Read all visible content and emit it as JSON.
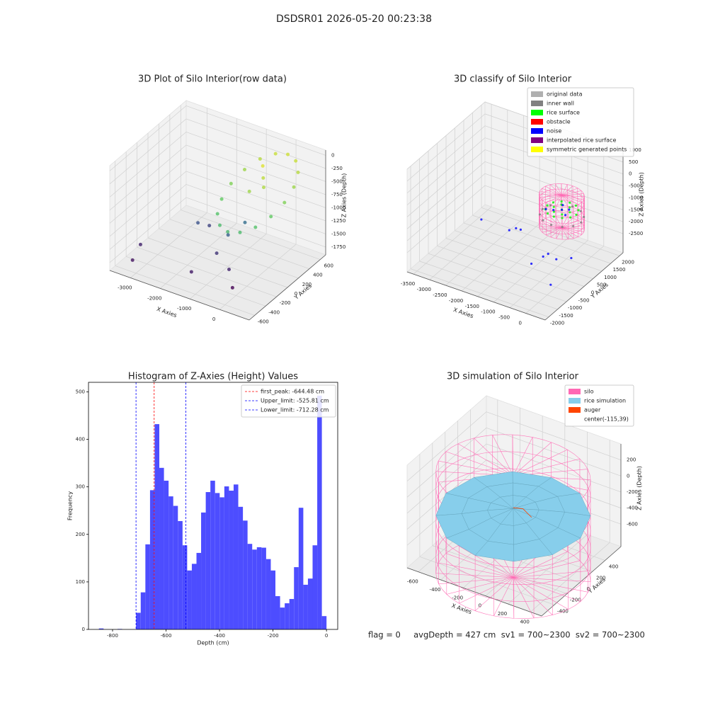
{
  "title": "DSDSR01 2026-05-20 00:23:38",
  "footer": "flag = 0     avgDepth = 427 cm  sv1 = 700~2300  sv2 = 700~2300",
  "chart_data": [
    {
      "type": "scatter3d",
      "title": "3D Plot of Silo Interior(row data)",
      "xlabel": "X Axies",
      "ylabel": "Y Axies",
      "zlabel": "Z Axies (Depth)",
      "xlim": [
        -3700,
        1000
      ],
      "ylim": [
        -700,
        700
      ],
      "zlim": [
        -1900,
        100
      ],
      "xticks": [
        -3000,
        -2000,
        -1000,
        0
      ],
      "yticks": [
        -600,
        -400,
        -200,
        0,
        200,
        400,
        600
      ],
      "zticks": [
        -1750,
        -1500,
        -1250,
        -1000,
        -750,
        -500,
        -250,
        0
      ],
      "colormap": "viridis",
      "x": [
        900,
        830,
        640,
        340,
        0,
        -340,
        -640,
        -830,
        -900,
        -830,
        -640,
        -340,
        0,
        340,
        640,
        830,
        0,
        -200,
        200,
        -100,
        -3300,
        -3400,
        -2000,
        -2200,
        -1200,
        -1000,
        -800,
        -600,
        -300,
        -1500
      ],
      "y": [
        0,
        210,
        390,
        510,
        550,
        510,
        390,
        210,
        0,
        -210,
        -390,
        -510,
        -550,
        -510,
        -390,
        -210,
        100,
        200,
        0,
        -100,
        -500,
        -300,
        200,
        100,
        -100,
        0,
        200,
        -200,
        -300,
        -400
      ],
      "z": [
        -300,
        -205,
        -123,
        -70,
        -50,
        -70,
        -123,
        -205,
        -300,
        -395,
        -478,
        -530,
        -550,
        -530,
        -478,
        -395,
        -100,
        0,
        -150,
        -200,
        -1800,
        -1700,
        -1500,
        -1400,
        -1600,
        -1300,
        -1200,
        -1700,
        -1900,
        -1750
      ]
    },
    {
      "type": "scatter3d",
      "title": "3D classify of Silo Interior",
      "xlabel": "X Axies",
      "ylabel": "Y Axies",
      "zlabel": "Z Axies (Depth)",
      "xlim": [
        -3700,
        600
      ],
      "ylim": [
        -2200,
        2200
      ],
      "zlim": [
        -3300,
        1000
      ],
      "xticks": [
        -3500,
        -3000,
        -2500,
        -2000,
        -1500,
        -1000,
        -500,
        0
      ],
      "yticks": [
        -2000,
        -1500,
        -1000,
        -500,
        0,
        500,
        1000,
        1500,
        2000
      ],
      "zticks": [
        -2500,
        -2000,
        -1500,
        -1000,
        -500,
        0,
        500,
        1000
      ],
      "silo": {
        "color": "#ff69b4",
        "center": [
          -115,
          39
        ],
        "radius": 620,
        "zlim": [
          -1200,
          150
        ]
      },
      "series": [
        {
          "name": "original data",
          "color": "#b0b0b0"
        },
        {
          "name": "inner wall",
          "color": "#808080",
          "x": [
            485,
            405,
            185,
            -115,
            -415,
            -635,
            -715,
            -635,
            -415,
            -115,
            185,
            405
          ],
          "y": [
            39,
            339,
            559,
            639,
            559,
            339,
            39,
            -261,
            -481,
            -561,
            -481,
            -261
          ],
          "z": [
            -700,
            -700,
            -700,
            -700,
            -700,
            -700,
            -700,
            -700,
            -700,
            -700,
            -700,
            -700
          ]
        },
        {
          "name": "rice surface",
          "color": "#00ff00",
          "x": [
            335,
            275,
            110,
            -115,
            -340,
            -505,
            -565,
            -505,
            -340,
            -115,
            110,
            275,
            135,
            10,
            -240,
            -365,
            -240,
            10,
            -115
          ],
          "y": [
            39,
            264,
            429,
            489,
            429,
            264,
            39,
            -186,
            -351,
            -411,
            -351,
            -186,
            39,
            256,
            256,
            39,
            -178,
            -178,
            39
          ],
          "z": [
            -450,
            -430,
            -420,
            -440,
            -460,
            -470,
            -480,
            -470,
            -460,
            -450,
            -440,
            -445,
            -440,
            -435,
            -445,
            -450,
            -455,
            -450,
            -445
          ]
        },
        {
          "name": "obstacle",
          "color": "#ff0000"
        },
        {
          "name": "noise",
          "color": "#0000ff",
          "x": [
            -2600,
            -1400,
            -1300,
            -1100,
            -600,
            -400,
            -300,
            0,
            -700,
            -100,
            200,
            -115,
            50,
            -300,
            -200,
            100
          ],
          "y": [
            0,
            -600,
            -400,
            -500,
            -800,
            -500,
            -400,
            -800,
            200,
            -300,
            0,
            39,
            150,
            -100,
            250,
            -150
          ],
          "z": [
            -2000,
            -1500,
            -1500,
            -1400,
            -2400,
            -2200,
            -2100,
            -3000,
            -800,
            -2300,
            -2300,
            -450,
            -440,
            -460,
            -430,
            -450
          ]
        },
        {
          "name": "interpolated rice surface",
          "color": "#800080"
        },
        {
          "name": "symmetric generated points",
          "color": "#ffff00"
        }
      ]
    },
    {
      "type": "histogram",
      "title": "Histogram of Z-Axies (Height) Values",
      "xlabel": "Depth (cm)",
      "ylabel": "Frequency",
      "color": "#4d4dff",
      "xlim": [
        -890,
        42
      ],
      "ylim": [
        0,
        520
      ],
      "xticks": [
        -800,
        -600,
        -400,
        -200,
        0
      ],
      "yticks": [
        0,
        100,
        200,
        300,
        400,
        500
      ],
      "bins": [
        -851.0,
        -833.6,
        -816.3,
        -798.9,
        -781.5,
        -764.2,
        -746.8,
        -729.4,
        -712.0,
        -694.7,
        -677.3,
        -659.9,
        -642.6,
        -625.2,
        -607.8,
        -590.5,
        -573.1,
        -555.7,
        -538.3,
        -521.0,
        -503.6,
        -486.2,
        -468.9,
        -451.5,
        -434.1,
        -416.8,
        -399.4,
        -382.0,
        -364.6,
        -347.3,
        -329.9,
        -312.5,
        -295.2,
        -277.8,
        -260.4,
        -243.1,
        -225.7,
        -208.3,
        -191.0,
        -173.6,
        -156.2,
        -138.8,
        -121.5,
        -104.1,
        -86.7,
        -69.4,
        -52.0,
        -34.6,
        -17.3,
        0.1
      ],
      "counts": [
        2,
        0,
        0,
        0,
        1,
        0,
        0,
        0,
        35,
        78,
        179,
        293,
        432,
        340,
        313,
        280,
        260,
        228,
        177,
        124,
        138,
        161,
        246,
        289,
        313,
        287,
        278,
        301,
        292,
        305,
        258,
        229,
        180,
        168,
        173,
        172,
        148,
        124,
        70,
        46,
        55,
        64,
        131,
        256,
        94,
        107,
        177,
        492,
        28
      ],
      "lines": [
        {
          "name": "first_peak: -644.48 cm",
          "value": -644.48,
          "color": "#ff0000"
        },
        {
          "name": "Upper_limit: -525.81 cm",
          "value": -525.81,
          "color": "#0000ff"
        },
        {
          "name": "Lower_limit: -712.28 cm",
          "value": -712.28,
          "color": "#0000ff"
        }
      ]
    },
    {
      "type": "surface3d",
      "title": "3D simulation of Silo Interior",
      "xlabel": "X Axies",
      "ylabel": "Y Axies",
      "zlabel": "Z Axies (Depth)",
      "xlim": [
        -700,
        500
      ],
      "ylim": [
        -600,
        650
      ],
      "zlim": [
        -880,
        400
      ],
      "xticks": [
        -600,
        -400,
        -200,
        0,
        200,
        400
      ],
      "yticks": [
        -400,
        -200,
        0,
        200,
        400
      ],
      "zticks": [
        -600,
        -400,
        -200,
        0,
        200
      ],
      "center_label": "center(-115,39)",
      "series": [
        {
          "name": "silo",
          "color": "#ff69b4",
          "center": [
            -115,
            39
          ],
          "radius": 600,
          "zlim": [
            -1150,
            120
          ]
        },
        {
          "name": "rice simulation",
          "color": "#87ceeb",
          "center_z": -290,
          "radii": [
            200,
            400,
            600
          ],
          "angles": [
            0,
            30,
            60,
            90,
            120,
            150,
            180,
            210,
            240,
            270,
            300,
            330
          ],
          "z": [
            [
              -300,
              -290,
              -280,
              -285,
              -295,
              -305,
              -320,
              -330,
              -340,
              -345,
              -335,
              -315
            ],
            [
              -330,
              -300,
              -280,
              -290,
              -310,
              -330,
              -360,
              -390,
              -410,
              -420,
              -400,
              -360
            ],
            [
              -360,
              -330,
              -310,
              -320,
              -340,
              -370,
              -400,
              -430,
              -450,
              -460,
              -440,
              -400
            ]
          ]
        },
        {
          "name": "auger",
          "color": "#ff4500",
          "x": [
            -115,
            -40,
            60
          ],
          "y": [
            39,
            60,
            20
          ],
          "z": [
            -280,
            -270,
            -300
          ]
        }
      ]
    }
  ]
}
